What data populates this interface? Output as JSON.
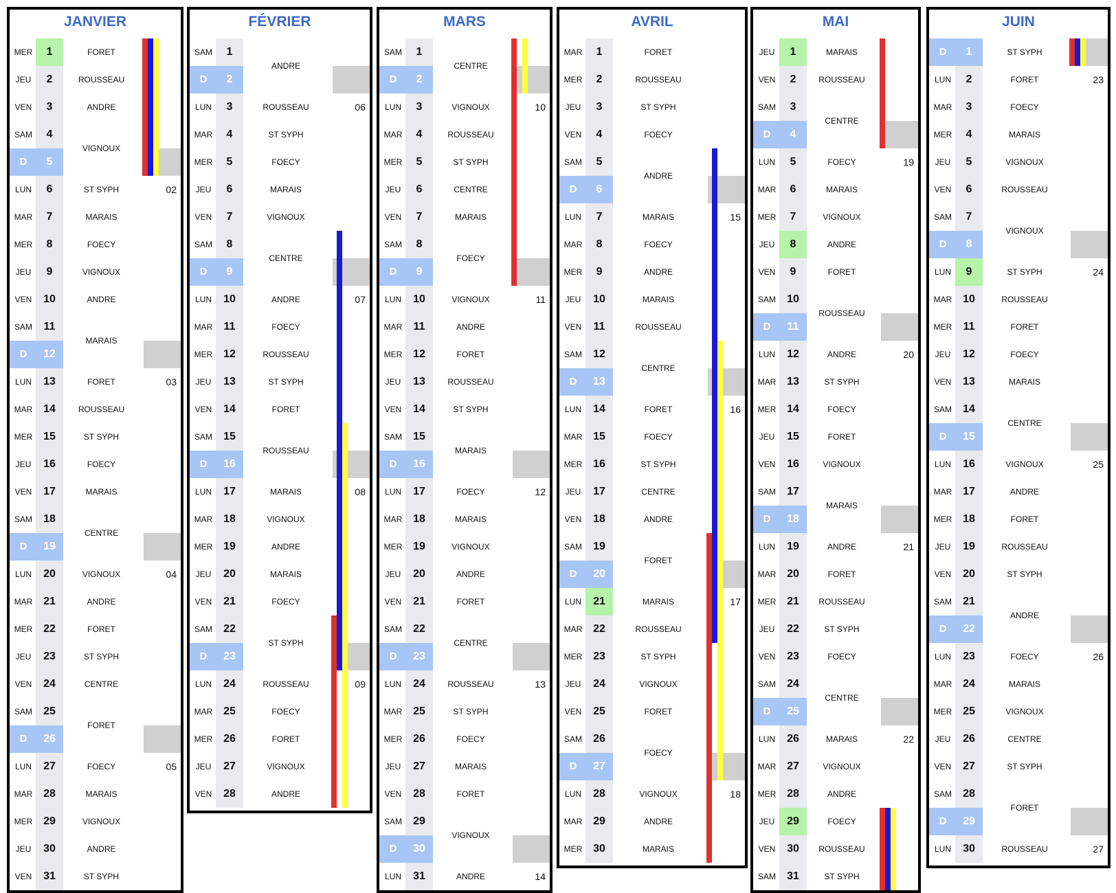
{
  "months": [
    {
      "name": "JANVIER",
      "start": 3,
      "days": 31,
      "names": [
        [
          1,
          "FORET",
          1
        ],
        [
          2,
          "ROUSSEAU",
          1
        ],
        [
          3,
          "ANDRE",
          1
        ],
        [
          4,
          "VIGNOUX",
          2
        ],
        [
          6,
          "ST SYPH",
          1
        ],
        [
          7,
          "MARAIS",
          1
        ],
        [
          8,
          "FOECY",
          1
        ],
        [
          9,
          "VIGNOUX",
          1
        ],
        [
          10,
          "ANDRE",
          1
        ],
        [
          11,
          "MARAIS",
          2
        ],
        [
          13,
          "FORET",
          1
        ],
        [
          14,
          "ROUSSEAU",
          1
        ],
        [
          15,
          "ST SYPH",
          1
        ],
        [
          16,
          "FOECY",
          1
        ],
        [
          17,
          "MARAIS",
          1
        ],
        [
          18,
          "CENTRE",
          2
        ],
        [
          20,
          "VIGNOUX",
          1
        ],
        [
          21,
          "ANDRE",
          1
        ],
        [
          22,
          "FORET",
          1
        ],
        [
          23,
          "ST SYPH",
          1
        ],
        [
          24,
          "CENTRE",
          1
        ],
        [
          25,
          "FORET",
          2
        ],
        [
          27,
          "FOECY",
          1
        ],
        [
          28,
          "MARAIS",
          1
        ],
        [
          29,
          "VIGNOUX",
          1
        ],
        [
          30,
          "ANDRE",
          1
        ],
        [
          31,
          "ST SYPH",
          1
        ]
      ],
      "weeks": [
        [
          6,
          "02"
        ],
        [
          13,
          "03"
        ],
        [
          20,
          "04"
        ],
        [
          27,
          "05"
        ]
      ],
      "green": [
        1
      ],
      "bars": [
        {
          "color": "#e03030",
          "from": 1,
          "to": 5,
          "lane": 0
        },
        {
          "color": "#1a1ad0",
          "from": 1,
          "to": 5,
          "lane": 1
        },
        {
          "color": "#ffff40",
          "from": 1,
          "to": 5,
          "lane": 2
        }
      ]
    },
    {
      "name": "FÉVRIER",
      "start": 6,
      "days": 28,
      "names": [
        [
          1,
          "ANDRE",
          2
        ],
        [
          3,
          "ROUSSEAU",
          1
        ],
        [
          4,
          "ST SYPH",
          1
        ],
        [
          5,
          "FOECY",
          1
        ],
        [
          6,
          "MARAIS",
          1
        ],
        [
          7,
          "VIGNOUX",
          1
        ],
        [
          8,
          "CENTRE",
          2
        ],
        [
          10,
          "ANDRE",
          1
        ],
        [
          11,
          "FOECY",
          1
        ],
        [
          12,
          "ROUSSEAU",
          1
        ],
        [
          13,
          "ST SYPH",
          1
        ],
        [
          14,
          "FORET",
          1
        ],
        [
          15,
          "ROUSSEAU",
          2
        ],
        [
          17,
          "MARAIS",
          1
        ],
        [
          18,
          "VIGNOUX",
          1
        ],
        [
          19,
          "ANDRE",
          1
        ],
        [
          20,
          "MARAIS",
          1
        ],
        [
          21,
          "FOECY",
          1
        ],
        [
          22,
          "ST SYPH",
          2
        ],
        [
          24,
          "ROUSSEAU",
          1
        ],
        [
          25,
          "FOECY",
          1
        ],
        [
          26,
          "FORET",
          1
        ],
        [
          27,
          "VIGNOUX",
          1
        ],
        [
          28,
          "ANDRE",
          1
        ]
      ],
      "weeks": [
        [
          3,
          "06"
        ],
        [
          10,
          "07"
        ],
        [
          17,
          "08"
        ],
        [
          24,
          "09"
        ]
      ],
      "green": [],
      "bars": [
        {
          "color": "#1a1ad0",
          "from": 8,
          "to": 23,
          "lane": 1
        },
        {
          "color": "#ffff40",
          "from": 15,
          "to": 28,
          "lane": 2
        },
        {
          "color": "#e03030",
          "from": 22,
          "to": 28,
          "lane": 0
        }
      ]
    },
    {
      "name": "MARS",
      "start": 6,
      "days": 31,
      "names": [
        [
          1,
          "CENTRE",
          2
        ],
        [
          3,
          "VIGNOUX",
          1
        ],
        [
          4,
          "ROUSSEAU",
          1
        ],
        [
          5,
          "ST SYPH",
          1
        ],
        [
          6,
          "CENTRE",
          1
        ],
        [
          7,
          "MARAIS",
          1
        ],
        [
          8,
          "FOECY",
          2
        ],
        [
          10,
          "VIGNOUX",
          1
        ],
        [
          11,
          "ANDRE",
          1
        ],
        [
          12,
          "FORET",
          1
        ],
        [
          13,
          "ROUSSEAU",
          1
        ],
        [
          14,
          "ST SYPH",
          1
        ],
        [
          15,
          "MARAIS",
          2
        ],
        [
          17,
          "FOECY",
          1
        ],
        [
          18,
          "MARAIS",
          1
        ],
        [
          19,
          "VIGNOUX",
          1
        ],
        [
          20,
          "ANDRE",
          1
        ],
        [
          21,
          "FORET",
          1
        ],
        [
          22,
          "CENTRE",
          2
        ],
        [
          24,
          "ROUSSEAU",
          1
        ],
        [
          25,
          "ST SYPH",
          1
        ],
        [
          26,
          "FOECY",
          1
        ],
        [
          27,
          "MARAIS",
          1
        ],
        [
          28,
          "FORET",
          1
        ],
        [
          29,
          "VIGNOUX",
          2
        ],
        [
          31,
          "ANDRE",
          1
        ]
      ],
      "weeks": [
        [
          3,
          "10"
        ],
        [
          10,
          "11"
        ],
        [
          17,
          "12"
        ],
        [
          24,
          "13"
        ],
        [
          31,
          "14"
        ]
      ],
      "green": [],
      "bars": [
        {
          "color": "#e03030",
          "from": 1,
          "to": 9,
          "lane": 0
        },
        {
          "color": "#ffff40",
          "from": 1,
          "to": 2,
          "lane": 2
        }
      ]
    },
    {
      "name": "AVRIL",
      "start": 2,
      "days": 30,
      "names": [
        [
          1,
          "FORET",
          1
        ],
        [
          2,
          "ROUSSEAU",
          1
        ],
        [
          3,
          "ST SYPH",
          1
        ],
        [
          4,
          "FOECY",
          1
        ],
        [
          5,
          "ANDRE",
          2
        ],
        [
          7,
          "MARAIS",
          1
        ],
        [
          8,
          "FOECY",
          1
        ],
        [
          9,
          "ANDRE",
          1
        ],
        [
          10,
          "MARAIS",
          1
        ],
        [
          11,
          "ROUSSEAU",
          1
        ],
        [
          12,
          "CENTRE",
          2
        ],
        [
          14,
          "FORET",
          1
        ],
        [
          15,
          "FOECY",
          1
        ],
        [
          16,
          "ST SYPH",
          1
        ],
        [
          17,
          "CENTRE",
          1
        ],
        [
          18,
          "ANDRE",
          1
        ],
        [
          19,
          "FORET",
          2
        ],
        [
          21,
          "MARAIS",
          1
        ],
        [
          22,
          "ROUSSEAU",
          1
        ],
        [
          23,
          "ST SYPH",
          1
        ],
        [
          24,
          "VIGNOUX",
          1
        ],
        [
          25,
          "FORET",
          1
        ],
        [
          26,
          "FOECY",
          2
        ],
        [
          28,
          "VIGNOUX",
          1
        ],
        [
          29,
          "ANDRE",
          1
        ],
        [
          30,
          "MARAIS",
          1
        ]
      ],
      "weeks": [
        [
          7,
          "15"
        ],
        [
          14,
          "16"
        ],
        [
          21,
          "17"
        ],
        [
          28,
          "18"
        ]
      ],
      "green": [
        21
      ],
      "bars": [
        {
          "color": "#1a1ad0",
          "from": 5,
          "to": 22,
          "lane": 1
        },
        {
          "color": "#ffff40",
          "from": 12,
          "to": 27,
          "lane": 2
        },
        {
          "color": "#e03030",
          "from": 19,
          "to": 30,
          "lane": 0
        }
      ]
    },
    {
      "name": "MAI",
      "start": 4,
      "days": 31,
      "names": [
        [
          1,
          "MARAIS",
          1
        ],
        [
          2,
          "ROUSSEAU",
          1
        ],
        [
          3,
          "CENTRE",
          2
        ],
        [
          5,
          "FOECY",
          1
        ],
        [
          6,
          "MARAIS",
          1
        ],
        [
          7,
          "VIGNOUX",
          1
        ],
        [
          8,
          "ANDRE",
          1
        ],
        [
          9,
          "FORET",
          1
        ],
        [
          10,
          "ROUSSEAU",
          2
        ],
        [
          12,
          "ANDRE",
          1
        ],
        [
          13,
          "ST SYPH",
          1
        ],
        [
          14,
          "FOECY",
          1
        ],
        [
          15,
          "FORET",
          1
        ],
        [
          16,
          "VIGNOUX",
          1
        ],
        [
          17,
          "MARAIS",
          2
        ],
        [
          19,
          "ANDRE",
          1
        ],
        [
          20,
          "FORET",
          1
        ],
        [
          21,
          "ROUSSEAU",
          1
        ],
        [
          22,
          "ST SYPH",
          1
        ],
        [
          23,
          "FOECY",
          1
        ],
        [
          24,
          "CENTRE",
          2
        ],
        [
          26,
          "MARAIS",
          1
        ],
        [
          27,
          "VIGNOUX",
          1
        ],
        [
          28,
          "ANDRE",
          1
        ],
        [
          29,
          "FOECY",
          1
        ],
        [
          30,
          "ROUSSEAU",
          1
        ],
        [
          31,
          "ST SYPH",
          1
        ]
      ],
      "weeks": [
        [
          5,
          "19"
        ],
        [
          12,
          "20"
        ],
        [
          19,
          "21"
        ],
        [
          26,
          "22"
        ]
      ],
      "green": [
        1,
        8,
        29
      ],
      "bars": [
        {
          "color": "#e03030",
          "from": 1,
          "to": 4,
          "lane": 0
        },
        {
          "color": "#e03030",
          "from": 29,
          "to": 31,
          "lane": 0
        },
        {
          "color": "#1a1ad0",
          "from": 29,
          "to": 31,
          "lane": 1
        },
        {
          "color": "#ffff40",
          "from": 29,
          "to": 31,
          "lane": 2
        }
      ]
    },
    {
      "name": "JUIN",
      "start": 0,
      "days": 30,
      "names": [
        [
          1,
          "ST SYPH",
          1
        ],
        [
          2,
          "FORET",
          1
        ],
        [
          3,
          "FOECY",
          1
        ],
        [
          4,
          "MARAIS",
          1
        ],
        [
          5,
          "VIGNOUX",
          1
        ],
        [
          6,
          "ROUSSEAU",
          1
        ],
        [
          7,
          "VIGNOUX",
          2
        ],
        [
          9,
          "ST SYPH",
          1
        ],
        [
          10,
          "ROUSSEAU",
          1
        ],
        [
          11,
          "FORET",
          1
        ],
        [
          12,
          "FOECY",
          1
        ],
        [
          13,
          "MARAIS",
          1
        ],
        [
          14,
          "CENTRE",
          2
        ],
        [
          16,
          "VIGNOUX",
          1
        ],
        [
          17,
          "ANDRE",
          1
        ],
        [
          18,
          "FORET",
          1
        ],
        [
          19,
          "ROUSSEAU",
          1
        ],
        [
          20,
          "ST SYPH",
          1
        ],
        [
          21,
          "ANDRE",
          2
        ],
        [
          23,
          "FOECY",
          1
        ],
        [
          24,
          "MARAIS",
          1
        ],
        [
          25,
          "VIGNOUX",
          1
        ],
        [
          26,
          "CENTRE",
          1
        ],
        [
          27,
          "ST SYPH",
          1
        ],
        [
          28,
          "FORET",
          2
        ],
        [
          30,
          "ROUSSEAU",
          1
        ]
      ],
      "weeks": [
        [
          2,
          "23"
        ],
        [
          9,
          "24"
        ],
        [
          16,
          "25"
        ],
        [
          23,
          "26"
        ],
        [
          30,
          "27"
        ]
      ],
      "green": [
        9
      ],
      "bars": [
        {
          "color": "#e03030",
          "from": 1,
          "to": 1,
          "lane": 0
        },
        {
          "color": "#1a1ad0",
          "from": 1,
          "to": 1,
          "lane": 1
        },
        {
          "color": "#ffff40",
          "from": 1,
          "to": 1,
          "lane": 2
        }
      ]
    }
  ],
  "weekdays": [
    "D",
    "LUN",
    "MAR",
    "MER",
    "JEU",
    "VEN",
    "SAM"
  ]
}
